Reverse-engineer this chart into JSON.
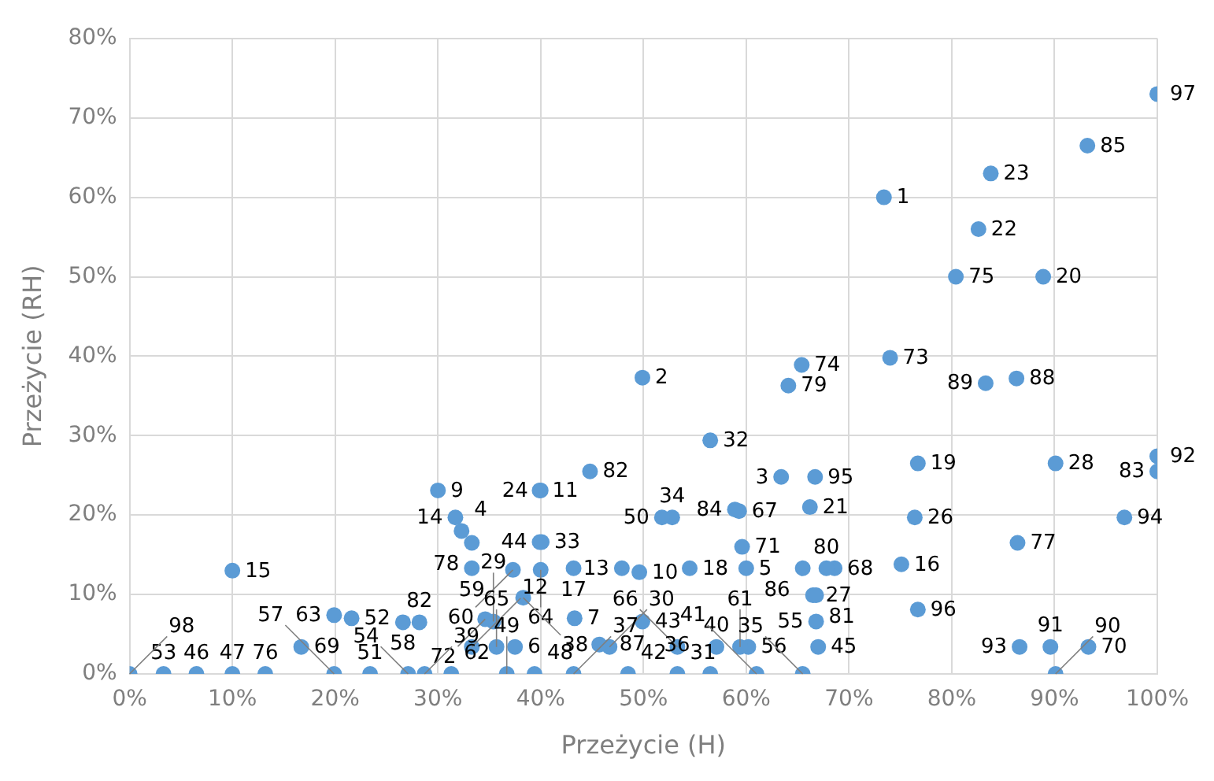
{
  "chart_data": {
    "type": "scatter",
    "xlabel": "Przeżycie (H)",
    "ylabel": "Przeżycie (RH)",
    "marker": "circle",
    "grid": true,
    "xlim": [
      0,
      100
    ],
    "xticks": [
      {
        "value": 0,
        "label": "0%"
      },
      {
        "value": 10,
        "label": "10%"
      },
      {
        "value": 20,
        "label": "20%"
      },
      {
        "value": 30,
        "label": "30%"
      },
      {
        "value": 40,
        "label": "40%"
      },
      {
        "value": 50,
        "label": "50%"
      },
      {
        "value": 60,
        "label": "60%"
      },
      {
        "value": 70,
        "label": "70%"
      },
      {
        "value": 80,
        "label": "80%"
      },
      {
        "value": 90,
        "label": "90%"
      },
      {
        "value": 100,
        "label": "100%"
      }
    ],
    "ylim": [
      0,
      80
    ],
    "yticks": [
      {
        "value": 0,
        "label": "0%"
      },
      {
        "value": 10,
        "label": "10%"
      },
      {
        "value": 20,
        "label": "20%"
      },
      {
        "value": 30,
        "label": "30%"
      },
      {
        "value": 40,
        "label": "40%"
      },
      {
        "value": 50,
        "label": "50%"
      },
      {
        "value": 60,
        "label": "60%"
      },
      {
        "value": 70,
        "label": "70%"
      },
      {
        "value": 80,
        "label": "80%"
      }
    ],
    "series": [
      {
        "color": "#5b9bd5",
        "x": [
          73.4,
          49.9,
          63.4,
          32.3,
          60.0,
          37.5,
          43.3,
          30.0,
          49.6,
          39.9,
          33.3,
          47.9,
          31.7,
          10.0,
          75.1,
          43.2,
          54.5,
          76.7,
          88.9,
          66.2,
          82.6,
          83.8,
          40.0,
          76.4,
          66.5,
          90.1,
          35.4,
          46.7,
          53.3,
          56.5,
          40.1,
          52.8,
          65.5,
          56.5,
          43.2,
          38.3,
          28.7,
          57.1,
          61.0,
          48.5,
          49.9,
          39.9,
          67.0,
          6.5,
          10.0,
          39.4,
          36.7,
          51.8,
          23.4,
          21.6,
          3.3,
          27.1,
          66.8,
          60.2,
          19.9,
          26.6,
          33.3,
          37.3,
          59.4,
          31.3,
          19.9,
          40.0,
          35.7,
          53.3,
          59.3,
          68.6,
          16.7,
          93.3,
          59.6,
          34.6,
          74.0,
          65.4,
          80.4,
          13.2,
          86.4,
          33.3,
          64.1,
          67.8,
          66.8,
          28.2,
          44.8,
          100,
          58.9,
          93.2,
          65.5,
          45.7,
          86.3,
          83.3,
          90.1,
          89.6,
          100,
          86.6,
          96.8,
          66.7,
          76.7,
          100,
          0
        ],
        "values": [
          60,
          37.3,
          24.8,
          18.0,
          13.3,
          3.4,
          7.0,
          23.1,
          12.8,
          23.1,
          3.4,
          13.3,
          19.7,
          13.0,
          13.8,
          13.3,
          13.3,
          26.5,
          50,
          21.0,
          56.0,
          63.0,
          23.1,
          19.7,
          9.9,
          26.5,
          6.6,
          3.4,
          0,
          29.4,
          16.6,
          19.7,
          0,
          0,
          0,
          9.6,
          0,
          3.4,
          0,
          0,
          6.6,
          16.6,
          3.4,
          0,
          0,
          0,
          0,
          19.7,
          0,
          7.0,
          0,
          0,
          6.6,
          3.4,
          0,
          6.5,
          13.3,
          13.1,
          3.4,
          0,
          7.4,
          13.1,
          3.4,
          3.4,
          20.5,
          13.3,
          3.4,
          3.4,
          16.0,
          6.9,
          39.8,
          38.9,
          50,
          0,
          16.5,
          16.5,
          36.3,
          13.3,
          9.9,
          6.5,
          25.5,
          25.5,
          20.7,
          66.5,
          13.3,
          3.7,
          37.2,
          36.6,
          0,
          3.4,
          27.4,
          3.4,
          19.7,
          24.8,
          8.1,
          73,
          0
        ]
      }
    ],
    "annotations": [
      {
        "text": "1",
        "x": 73.4,
        "y": 60
      },
      {
        "text": "2",
        "x": 49.9,
        "y": 37.3
      },
      {
        "text": "3",
        "x": 63.4,
        "y": 24.8
      },
      {
        "text": "4",
        "x": 32.3,
        "y": 18.0
      },
      {
        "text": "5",
        "x": 60.0,
        "y": 13.3
      },
      {
        "text": "6",
        "x": 37.5,
        "y": 3.4
      },
      {
        "text": "7",
        "x": 43.3,
        "y": 7.0
      },
      {
        "text": "9",
        "x": 30.0,
        "y": 23.1
      },
      {
        "text": "10",
        "x": 49.6,
        "y": 12.8
      },
      {
        "text": "11",
        "x": 39.9,
        "y": 23.1
      },
      {
        "text": "12",
        "x": 33.3,
        "y": 3.4
      },
      {
        "text": "13",
        "x": 47.9,
        "y": 13.3
      },
      {
        "text": "14",
        "x": 31.7,
        "y": 19.7
      },
      {
        "text": "15",
        "x": 10.0,
        "y": 13.0
      },
      {
        "text": "16",
        "x": 75.1,
        "y": 13.8
      },
      {
        "text": "17",
        "x": 43.2,
        "y": 13.3
      },
      {
        "text": "18",
        "x": 54.5,
        "y": 13.3
      },
      {
        "text": "19",
        "x": 76.7,
        "y": 26.5
      },
      {
        "text": "20",
        "x": 88.9,
        "y": 50
      },
      {
        "text": "21",
        "x": 66.2,
        "y": 21.0
      },
      {
        "text": "22",
        "x": 82.6,
        "y": 56.0
      },
      {
        "text": "23",
        "x": 83.8,
        "y": 63.0
      },
      {
        "text": "24",
        "x": 40.0,
        "y": 23.1
      },
      {
        "text": "26",
        "x": 76.4,
        "y": 19.7
      },
      {
        "text": "27",
        "x": 66.5,
        "y": 9.9
      },
      {
        "text": "28",
        "x": 90.1,
        "y": 26.5
      },
      {
        "text": "29",
        "x": 35.4,
        "y": 6.6
      },
      {
        "text": "30",
        "x": 46.7,
        "y": 3.4
      },
      {
        "text": "31",
        "x": 53.3,
        "y": 0
      },
      {
        "text": "32",
        "x": 56.5,
        "y": 29.4
      },
      {
        "text": "33",
        "x": 40.1,
        "y": 16.6
      },
      {
        "text": "34",
        "x": 52.8,
        "y": 19.7
      },
      {
        "text": "35",
        "x": 65.5,
        "y": 0
      },
      {
        "text": "36",
        "x": 56.5,
        "y": 0
      },
      {
        "text": "37",
        "x": 43.2,
        "y": 0
      },
      {
        "text": "38",
        "x": 38.3,
        "y": 9.6
      },
      {
        "text": "39",
        "x": 28.7,
        "y": 0
      },
      {
        "text": "40",
        "x": 57.1,
        "y": 3.4
      },
      {
        "text": "41",
        "x": 61.0,
        "y": 0
      },
      {
        "text": "42",
        "x": 48.5,
        "y": 0
      },
      {
        "text": "43",
        "x": 49.9,
        "y": 6.6
      },
      {
        "text": "44",
        "x": 39.9,
        "y": 16.6
      },
      {
        "text": "45",
        "x": 67.0,
        "y": 3.4
      },
      {
        "text": "46",
        "x": 6.5,
        "y": 0
      },
      {
        "text": "47",
        "x": 10.0,
        "y": 0
      },
      {
        "text": "48",
        "x": 39.4,
        "y": 0
      },
      {
        "text": "49",
        "x": 36.7,
        "y": 0
      },
      {
        "text": "50",
        "x": 51.8,
        "y": 19.7
      },
      {
        "text": "51",
        "x": 23.4,
        "y": 0
      },
      {
        "text": "52",
        "x": 21.6,
        "y": 7.0
      },
      {
        "text": "53",
        "x": 3.3,
        "y": 0
      },
      {
        "text": "54",
        "x": 27.1,
        "y": 0
      },
      {
        "text": "55",
        "x": 66.8,
        "y": 6.6
      },
      {
        "text": "56",
        "x": 60.2,
        "y": 3.4
      },
      {
        "text": "57",
        "x": 19.9,
        "y": 0
      },
      {
        "text": "58",
        "x": 26.6,
        "y": 6.5
      },
      {
        "text": "59",
        "x": 33.3,
        "y": 13.3
      },
      {
        "text": "60",
        "x": 37.3,
        "y": 13.1
      },
      {
        "text": "61",
        "x": 59.4,
        "y": 3.4
      },
      {
        "text": "62",
        "x": 31.3,
        "y": 0
      },
      {
        "text": "63",
        "x": 19.9,
        "y": 7.4
      },
      {
        "text": "64",
        "x": 40.0,
        "y": 13.1
      },
      {
        "text": "65",
        "x": 35.7,
        "y": 3.4
      },
      {
        "text": "66",
        "x": 53.3,
        "y": 3.4
      },
      {
        "text": "67",
        "x": 59.3,
        "y": 20.5
      },
      {
        "text": "68",
        "x": 68.6,
        "y": 13.3
      },
      {
        "text": "69",
        "x": 16.7,
        "y": 3.4
      },
      {
        "text": "70",
        "x": 93.3,
        "y": 3.4
      },
      {
        "text": "71",
        "x": 59.6,
        "y": 16.0
      },
      {
        "text": "72",
        "x": 34.6,
        "y": 6.9
      },
      {
        "text": "73",
        "x": 74.0,
        "y": 39.8
      },
      {
        "text": "74",
        "x": 65.4,
        "y": 38.9
      },
      {
        "text": "75",
        "x": 80.4,
        "y": 50
      },
      {
        "text": "76",
        "x": 13.2,
        "y": 0
      },
      {
        "text": "77",
        "x": 86.4,
        "y": 16.5
      },
      {
        "text": "78",
        "x": 33.3,
        "y": 16.5
      },
      {
        "text": "79",
        "x": 64.1,
        "y": 36.3
      },
      {
        "text": "80",
        "x": 67.8,
        "y": 13.3
      },
      {
        "text": "81",
        "x": 66.8,
        "y": 9.9
      },
      {
        "text": "82",
        "x": 28.2,
        "y": 6.5
      },
      {
        "text": "82",
        "x": 44.8,
        "y": 25.5
      },
      {
        "text": "83",
        "x": 100,
        "y": 25.5
      },
      {
        "text": "84",
        "x": 58.9,
        "y": 20.7
      },
      {
        "text": "85",
        "x": 93.2,
        "y": 66.5
      },
      {
        "text": "86",
        "x": 65.5,
        "y": 13.3
      },
      {
        "text": "87",
        "x": 45.7,
        "y": 3.7
      },
      {
        "text": "88",
        "x": 86.3,
        "y": 37.2
      },
      {
        "text": "89",
        "x": 83.3,
        "y": 36.6
      },
      {
        "text": "90",
        "x": 90.1,
        "y": 0
      },
      {
        "text": "91",
        "x": 89.6,
        "y": 3.4
      },
      {
        "text": "92",
        "x": 100,
        "y": 27.4
      },
      {
        "text": "93",
        "x": 86.6,
        "y": 3.4
      },
      {
        "text": "94",
        "x": 96.8,
        "y": 19.7
      },
      {
        "text": "95",
        "x": 66.7,
        "y": 24.8
      },
      {
        "text": "96",
        "x": 76.7,
        "y": 8.1
      },
      {
        "text": "97",
        "x": 100,
        "y": 73
      },
      {
        "text": "98",
        "x": 0,
        "y": 0
      }
    ]
  }
}
